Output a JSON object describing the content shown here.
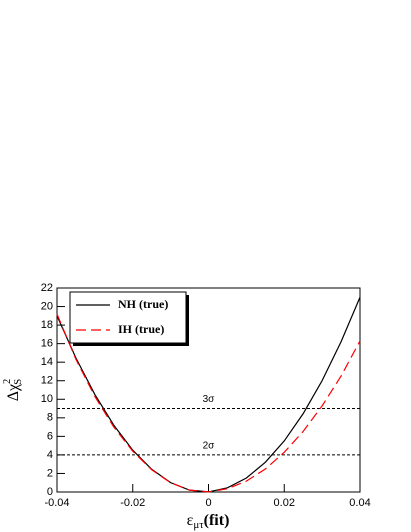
{
  "chart_data": {
    "type": "line",
    "x_label": {
      "symbol": "ε",
      "subscript": "μτ",
      "suffix": "(fit)"
    },
    "y_label": {
      "symbol": "Δχ",
      "superscript": "2",
      "subscript": "S"
    },
    "x": [
      -0.04,
      -0.035,
      -0.03,
      -0.025,
      -0.02,
      -0.015,
      -0.01,
      -0.005,
      0,
      0.005,
      0.01,
      0.015,
      0.02,
      0.025,
      0.03,
      0.035,
      0.04
    ],
    "series": [
      {
        "name": "NH (true)",
        "color": "#000000",
        "dash": false,
        "values": [
          19.0,
          14.45,
          10.51,
          7.2,
          4.51,
          2.45,
          1.01,
          0.2,
          0.01,
          0.45,
          1.51,
          3.2,
          5.51,
          8.45,
          12.01,
          16.2,
          21.0
        ]
      },
      {
        "name": "IH (true)",
        "color": "#ff0000",
        "dash": true,
        "values": [
          19.2,
          14.3,
          10.3,
          7.0,
          4.4,
          2.4,
          1.0,
          0.2,
          0.01,
          0.35,
          1.17,
          2.48,
          4.28,
          6.54,
          9.29,
          12.5,
          16.3
        ]
      }
    ],
    "hlines": [
      {
        "value": 9,
        "label": "3σ"
      },
      {
        "value": 4,
        "label": "2σ"
      }
    ],
    "xlim": [
      -0.04,
      0.04
    ],
    "xticks": [
      -0.04,
      -0.02,
      0,
      0.02,
      0.04
    ],
    "ylim": [
      0,
      22
    ],
    "yticks": [
      0,
      2,
      4,
      6,
      8,
      10,
      12,
      14,
      16,
      18,
      20,
      22
    ],
    "legend": "top-left"
  }
}
